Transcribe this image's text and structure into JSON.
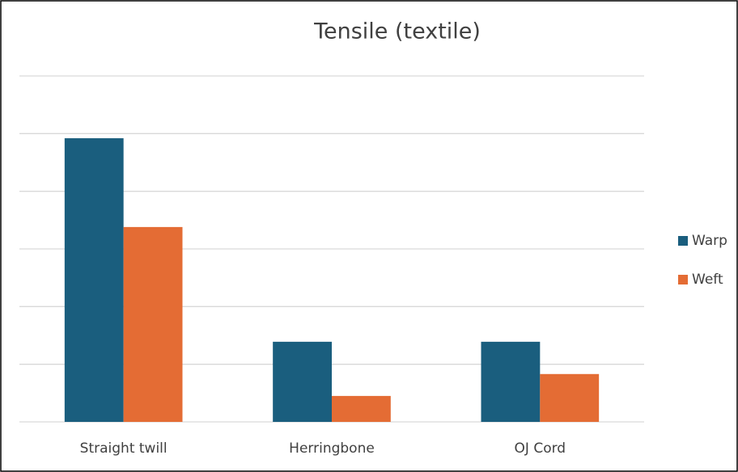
{
  "chart_data": {
    "type": "bar",
    "title": "Tensile (textile)",
    "categories": [
      "Straight twill",
      "Herringbone",
      "OJ Cord"
    ],
    "series": [
      {
        "name": "Warp",
        "color": "#1a5e7e",
        "values": [
          4.92,
          1.39,
          1.39
        ]
      },
      {
        "name": "Weft",
        "color": "#e46c34",
        "values": [
          3.38,
          0.45,
          0.83
        ]
      }
    ],
    "ylim": [
      0,
      6
    ],
    "yticks": [
      0,
      1,
      2,
      3,
      4,
      5,
      6
    ],
    "grid": true,
    "legend": "right"
  }
}
